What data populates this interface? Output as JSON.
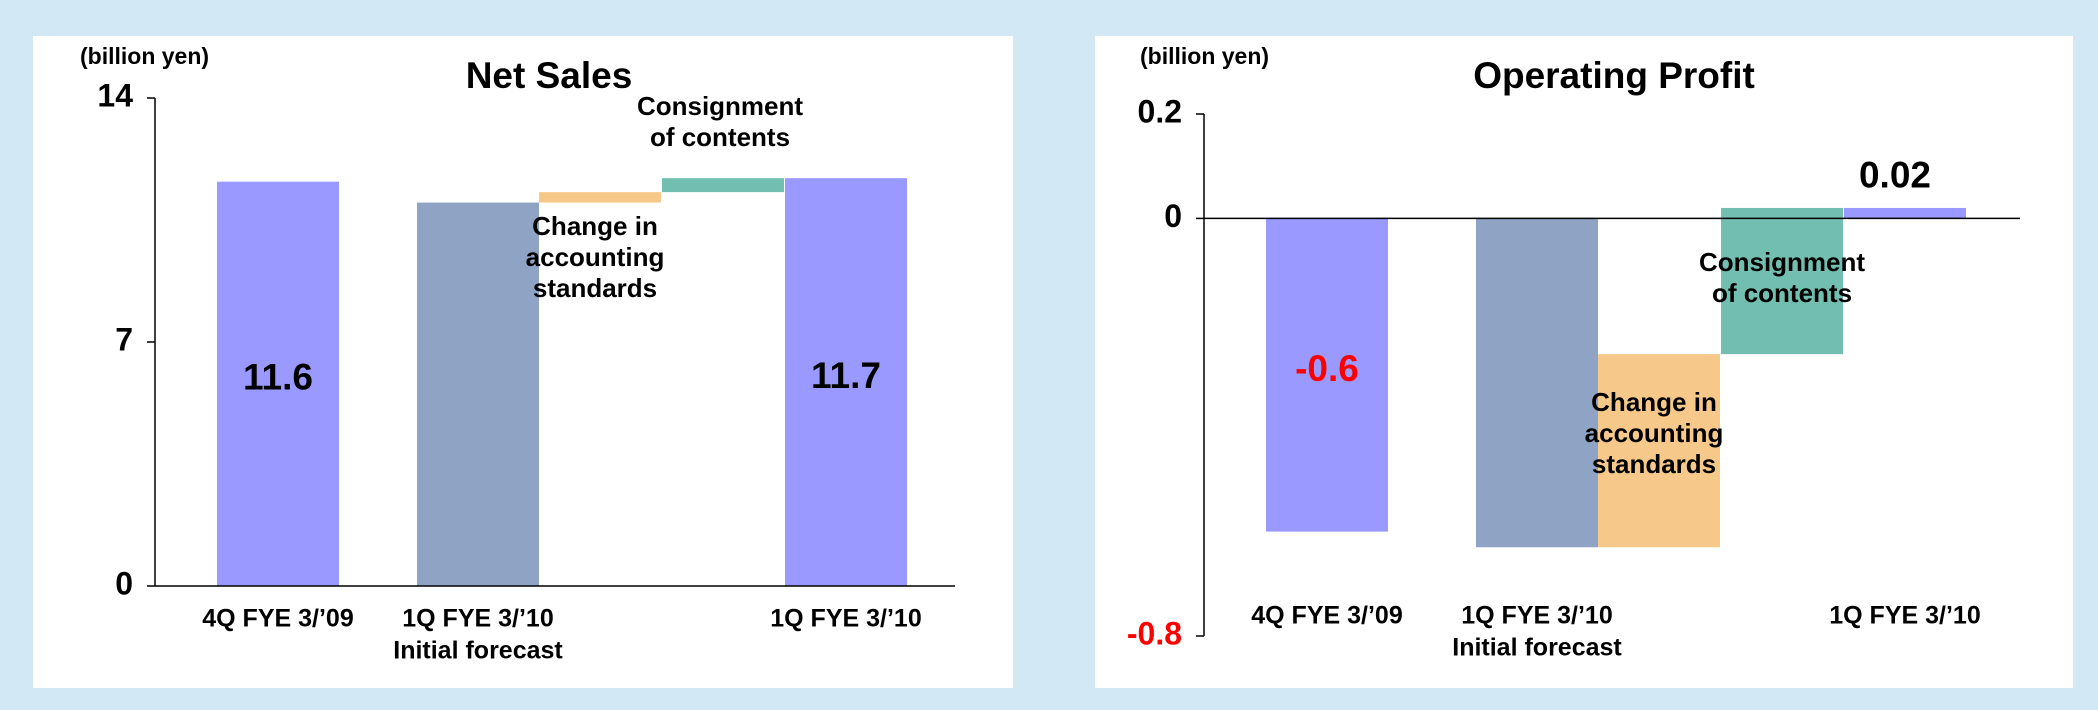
{
  "chart_data": [
    {
      "type": "waterfall",
      "title": "Net Sales",
      "unit_label": "(billion yen)",
      "categories": [
        [
          "4Q FYE 3/’09"
        ],
        [
          "1Q FYE 3/’10",
          "Initial forecast"
        ],
        [
          "Change in",
          "accounting",
          "standards"
        ],
        [
          "Consignment",
          "of contents"
        ],
        [
          "1Q FYE 3/’10"
        ]
      ],
      "kinds": [
        "total",
        "total",
        "step",
        "step",
        "total"
      ],
      "values": [
        11.6,
        11.0,
        0.3,
        0.4,
        11.7
      ],
      "value_labels": [
        "11.6",
        null,
        null,
        null,
        "11.7"
      ],
      "value_label_colors": [
        "#000000",
        null,
        null,
        null,
        "#000000"
      ],
      "colors": [
        "#9999ff",
        "#8fa3c4",
        "#f6c98a",
        "#72bfb2",
        "#9999ff"
      ],
      "ylim": [
        0,
        14
      ],
      "yticks": [
        0,
        7,
        14
      ],
      "ytick_colors": [
        "#000000",
        "#000000",
        "#000000"
      ]
    },
    {
      "type": "waterfall",
      "title": "Operating Profit",
      "unit_label": "(billion yen)",
      "categories": [
        [
          "4Q FYE 3/’09"
        ],
        [
          "1Q FYE 3/’10",
          "Initial forecast"
        ],
        [
          "Change in",
          "accounting",
          "standards"
        ],
        [
          "Consignment",
          "of contents"
        ],
        [
          "1Q FYE 3/’10"
        ]
      ],
      "kinds": [
        "total",
        "total",
        "step",
        "step",
        "total"
      ],
      "values": [
        -0.6,
        -0.63,
        0.37,
        0.28,
        0.02
      ],
      "value_labels": [
        "-0.6",
        null,
        null,
        null,
        "0.02"
      ],
      "value_label_colors": [
        "#ff0000",
        null,
        null,
        null,
        "#000000"
      ],
      "colors": [
        "#9999ff",
        "#8fa3c4",
        "#f6c98a",
        "#72bfb2",
        "#9999ff"
      ],
      "ylim": [
        -0.8,
        0.2
      ],
      "yticks": [
        0.2,
        0,
        -0.8
      ],
      "ytick_colors": [
        "#000000",
        "#000000",
        "#ff0000"
      ]
    }
  ]
}
